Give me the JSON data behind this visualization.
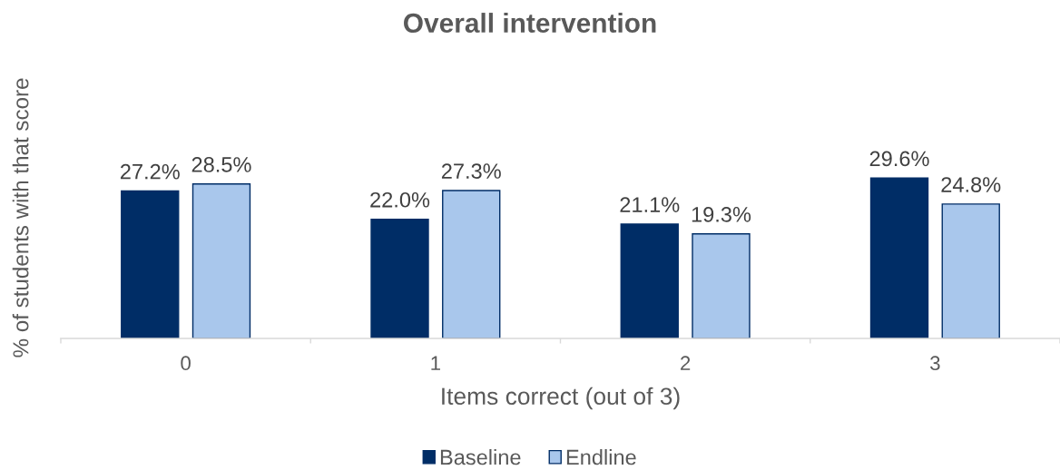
{
  "chart_data": {
    "type": "bar",
    "title": "Overall intervention",
    "xlabel": "Items correct (out of 3)",
    "ylabel": "% of students with that score",
    "categories": [
      "0",
      "1",
      "2",
      "3"
    ],
    "series": [
      {
        "name": "Baseline",
        "color": "#002d66",
        "values": [
          27.2,
          22.0,
          21.1,
          29.6
        ],
        "value_labels": [
          "27.2%",
          "22.0%",
          "21.1%",
          "29.6%"
        ]
      },
      {
        "name": "Endline",
        "color": "#a9c7ec",
        "values": [
          28.5,
          27.3,
          19.3,
          24.8
        ],
        "value_labels": [
          "28.5%",
          "27.3%",
          "19.3%",
          "24.8%"
        ]
      }
    ],
    "tick_labels": "x",
    "legend": "bottom"
  }
}
